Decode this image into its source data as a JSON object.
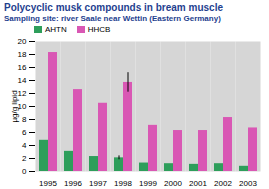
{
  "chart_data": {
    "type": "bar",
    "title": "Polycyclic musk compounds in bream muscle",
    "subtitle": "Sampling site: river Saale near Wettin (Eastern Germany)",
    "y_label": "µg/g lipid",
    "categories": [
      "1995",
      "1996",
      "1997",
      "1998",
      "1999",
      "2000",
      "2001",
      "2002",
      "2003"
    ],
    "series": [
      {
        "name": "AHTN",
        "color": "#2e9e5b",
        "values": [
          4.8,
          3.1,
          2.3,
          2.1,
          1.3,
          1.2,
          1.1,
          1.2,
          0.8
        ],
        "error": [
          null,
          null,
          null,
          0.3,
          null,
          null,
          null,
          null,
          null
        ]
      },
      {
        "name": "HHCB",
        "color": "#d957b4",
        "values": [
          18.3,
          12.6,
          10.5,
          13.7,
          7.1,
          6.3,
          6.3,
          8.3,
          6.7
        ],
        "error": [
          null,
          null,
          null,
          1.5,
          null,
          null,
          null,
          null,
          null
        ]
      }
    ],
    "ylim": [
      0,
      20
    ],
    "yticks": [
      0,
      2,
      4,
      6,
      8,
      10,
      12,
      14,
      16,
      18,
      20
    ],
    "grid": false,
    "legend": "top-left"
  }
}
